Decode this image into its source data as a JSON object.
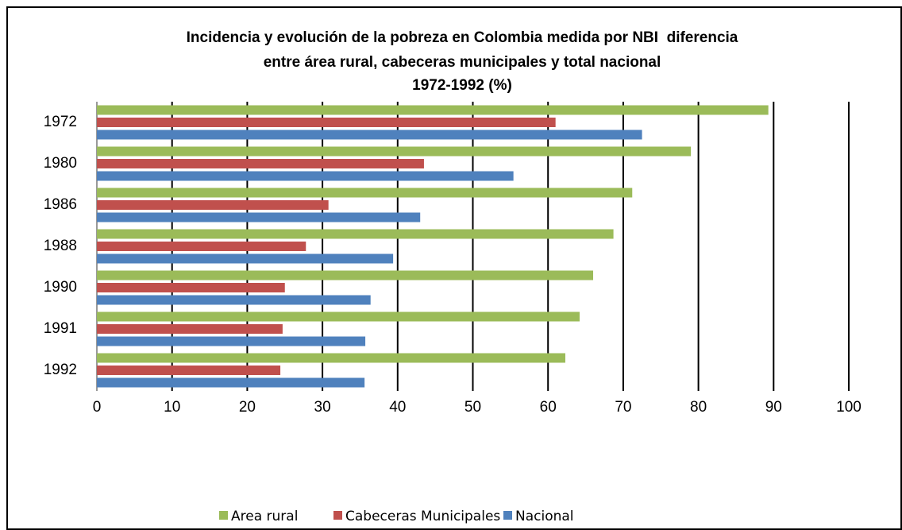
{
  "chart_data": {
    "type": "hbar",
    "title": [
      "Incidencia y evolución de la pobreza en Colombia medida por NBI  diferencia",
      "entre área rural, cabeceras municipales y total nacional",
      "1972-1992 (%)"
    ],
    "categories": [
      "1972",
      "1980",
      "1986",
      "1988",
      "1990",
      "1991",
      "1992"
    ],
    "series": [
      {
        "name": "Area rural",
        "color": "#9bbb59",
        "values": [
          89.3,
          79.0,
          71.2,
          68.7,
          66.0,
          64.2,
          62.3
        ]
      },
      {
        "name": "Cabeceras Municipales",
        "color": "#c0504d",
        "values": [
          61.0,
          43.5,
          30.8,
          27.8,
          25.0,
          24.7,
          24.4
        ]
      },
      {
        "name": "Nacional",
        "color": "#4f81bd",
        "values": [
          72.5,
          55.4,
          43.0,
          39.4,
          36.4,
          35.7,
          35.6
        ]
      }
    ],
    "xlim": [
      0,
      100
    ],
    "xticks": [
      0,
      10,
      20,
      30,
      40,
      50,
      60,
      70,
      80,
      90,
      100
    ],
    "grid": true,
    "legend": "bottom"
  }
}
